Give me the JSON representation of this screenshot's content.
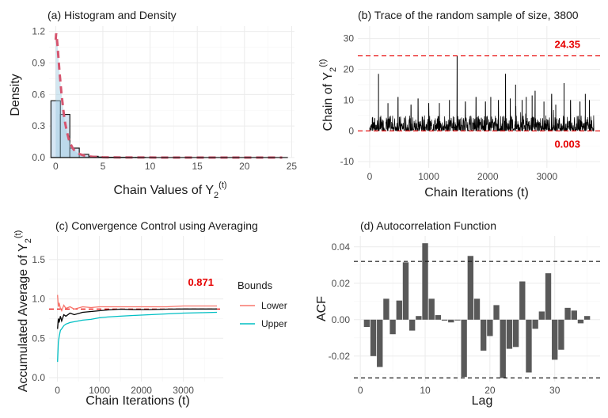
{
  "chart_data": [
    {
      "id": "a",
      "type": "histogram",
      "title": "(a) Histogram and Density",
      "xlabel": "Chain Values of Y",
      "xlabel_sub": "2",
      "xlabel_sup": "(t)",
      "ylabel": "Density",
      "xlim": [
        -0.7,
        25.3
      ],
      "ylim": [
        0,
        1.25
      ],
      "xticks": [
        0,
        5,
        10,
        15,
        20,
        25
      ],
      "yticks": [
        0.0,
        0.3,
        0.6,
        0.9,
        1.2
      ],
      "xtick_labels": [
        "0",
        "5",
        "10",
        "15",
        "20",
        "25"
      ],
      "ytick_labels": [
        "0.0",
        "0.3",
        "0.6",
        "0.9",
        "1.2"
      ],
      "bin_width": 1,
      "bins": [
        {
          "x0": -0.5,
          "x1": 0.5,
          "density": 0.54
        },
        {
          "x0": 0.5,
          "x1": 1.5,
          "density": 0.41
        },
        {
          "x0": 1.5,
          "x1": 2.5,
          "density": 0.09
        },
        {
          "x0": 2.5,
          "x1": 3.5,
          "density": 0.03
        },
        {
          "x0": 3.5,
          "x1": 4.5,
          "density": 0.012
        },
        {
          "x0": 4.5,
          "x1": 5.5,
          "density": 0.005
        },
        {
          "x0": 5.5,
          "x1": 6.5,
          "density": 0.003
        },
        {
          "x0": 6.5,
          "x1": 7.5,
          "density": 0.002
        },
        {
          "x0": 7.5,
          "x1": 8.5,
          "density": 0.001
        },
        {
          "x0": 8.5,
          "x1": 9.5,
          "density": 0.001
        }
      ],
      "density_curve": {
        "x": [
          0,
          0.05,
          0.1,
          0.2,
          0.3,
          0.4,
          0.5,
          0.6,
          0.7,
          0.8,
          0.9,
          1.0,
          1.2,
          1.4,
          1.6,
          1.8,
          2.0,
          2.5,
          3.0,
          3.5,
          4,
          5,
          6,
          8,
          10,
          12,
          15,
          20,
          24
        ],
        "y": [
          1.12,
          1.18,
          1.16,
          1.06,
          0.94,
          0.82,
          0.72,
          0.62,
          0.54,
          0.46,
          0.39,
          0.33,
          0.24,
          0.17,
          0.125,
          0.09,
          0.065,
          0.035,
          0.019,
          0.011,
          0.007,
          0.003,
          0.0015,
          0.0008,
          0.0005,
          0.0003,
          0.0002,
          0.0001,
          0.0001
        ]
      },
      "bar_fill": "#d6e6f4",
      "bar_stroke": "#1a1a1a",
      "area_fill": "#9ecae1",
      "density_color": "#d6556f"
    },
    {
      "id": "b",
      "type": "line",
      "title": "(b) Trace of the random sample of size, 3800",
      "xlabel": "Chain Iterations (t)",
      "ylabel": "Chain of Y",
      "ylabel_sub": "2",
      "ylabel_sup": "(t)",
      "xlim": [
        -200,
        3900
      ],
      "ylim": [
        -12,
        34
      ],
      "xticks": [
        0,
        1000,
        2000,
        3000
      ],
      "yticks": [
        -10,
        0,
        10,
        20,
        30
      ],
      "xtick_labels": [
        "0",
        "1000",
        "2000",
        "3000"
      ],
      "ytick_labels": [
        "-10",
        "0",
        "10",
        "20",
        "30"
      ],
      "n": 3800,
      "spikes": [
        [
          150,
          18.5
        ],
        [
          310,
          9
        ],
        [
          480,
          11
        ],
        [
          700,
          8.5
        ],
        [
          820,
          10.5
        ],
        [
          1000,
          9
        ],
        [
          1180,
          9
        ],
        [
          1350,
          10
        ],
        [
          1480,
          24.35
        ],
        [
          1620,
          9.5
        ],
        [
          1800,
          11
        ],
        [
          1960,
          9.5
        ],
        [
          2050,
          11
        ],
        [
          2180,
          10
        ],
        [
          2300,
          18.5
        ],
        [
          2380,
          10.5
        ],
        [
          2470,
          15
        ],
        [
          2580,
          10
        ],
        [
          2650,
          11
        ],
        [
          2750,
          11.5
        ],
        [
          2800,
          13
        ],
        [
          2950,
          9.5
        ],
        [
          3080,
          12
        ],
        [
          3150,
          8.5
        ],
        [
          3290,
          15.5
        ],
        [
          3400,
          10
        ],
        [
          3560,
          9.5
        ],
        [
          3650,
          12
        ],
        [
          3720,
          10
        ]
      ],
      "hlines": [
        {
          "y": 24.35,
          "label": "24.35"
        },
        {
          "y": 0.003,
          "label": "0.003"
        }
      ],
      "line_color": "#000000",
      "ref_color": "#e60000"
    },
    {
      "id": "c",
      "type": "line",
      "title": "(c) Convergence Control using Averaging",
      "xlabel": "Chain Iterations (t)",
      "ylabel": "Accumulated Average of Y",
      "ylabel_sub": "2",
      "ylabel_sup": "(t)",
      "xlim": [
        -200,
        3950
      ],
      "ylim": [
        -0.05,
        1.8
      ],
      "xticks": [
        0,
        1000,
        2000,
        3000
      ],
      "yticks": [
        0.0,
        0.5,
        1.0,
        1.5
      ],
      "xtick_labels": [
        "0",
        "1000",
        "2000",
        "3000"
      ],
      "ytick_labels": [
        "0.0",
        "0.5",
        "1.0",
        "1.5"
      ],
      "hline": {
        "y": 0.871,
        "label": "0.871"
      },
      "legend": {
        "title": "Bounds",
        "position": "right",
        "items": [
          {
            "name": "Lower",
            "color": "#f8766d"
          },
          {
            "name": "Upper",
            "color": "#00bfc4"
          }
        ]
      },
      "series": [
        {
          "role": "mean",
          "color": "#000000",
          "x": [
            1,
            20,
            40,
            70,
            100,
            150,
            200,
            300,
            400,
            600,
            800,
            1000,
            1200,
            1500,
            1800,
            2200,
            2600,
            3000,
            3400,
            3800
          ],
          "y": [
            0.62,
            0.75,
            0.7,
            0.78,
            0.72,
            0.8,
            0.78,
            0.82,
            0.8,
            0.83,
            0.84,
            0.85,
            0.86,
            0.87,
            0.865,
            0.865,
            0.87,
            0.872,
            0.872,
            0.872
          ]
        },
        {
          "name": "Lower",
          "color": "#f8766d",
          "x": [
            1,
            20,
            40,
            70,
            100,
            150,
            200,
            300,
            400,
            600,
            800,
            1000,
            1200,
            1500,
            1800,
            2200,
            2600,
            3000,
            3400,
            3800
          ],
          "y": [
            1.05,
            0.9,
            0.95,
            0.88,
            0.85,
            0.92,
            0.88,
            0.9,
            0.87,
            0.9,
            0.89,
            0.9,
            0.9,
            0.9,
            0.9,
            0.9,
            0.9,
            0.91,
            0.91,
            0.91
          ]
        },
        {
          "name": "Upper",
          "color": "#00bfc4",
          "x": [
            1,
            20,
            40,
            70,
            100,
            150,
            200,
            300,
            400,
            600,
            800,
            1000,
            1200,
            1500,
            1800,
            2200,
            2600,
            3000,
            3400,
            3800
          ],
          "y": [
            0.2,
            0.45,
            0.52,
            0.6,
            0.62,
            0.66,
            0.68,
            0.7,
            0.71,
            0.73,
            0.74,
            0.76,
            0.77,
            0.78,
            0.79,
            0.8,
            0.81,
            0.82,
            0.825,
            0.83
          ]
        }
      ]
    },
    {
      "id": "d",
      "type": "bar",
      "title": "(d) Autocorrelation Function",
      "xlabel": "Lag",
      "ylabel": "ACF",
      "xlim": [
        -1,
        37
      ],
      "ylim": [
        -0.034,
        0.046
      ],
      "xticks": [
        0,
        10,
        20,
        30
      ],
      "yticks": [
        -0.02,
        0.0,
        0.02,
        0.04
      ],
      "xtick_labels": [
        "0",
        "10",
        "20",
        "30"
      ],
      "ytick_labels": [
        "-0.02",
        "0.00",
        "0.02",
        "0.04"
      ],
      "conf_limits": [
        0.032,
        -0.032
      ],
      "lags": [
        1,
        2,
        3,
        4,
        5,
        6,
        7,
        8,
        9,
        10,
        11,
        12,
        13,
        14,
        15,
        16,
        17,
        18,
        19,
        20,
        21,
        22,
        23,
        24,
        25,
        26,
        27,
        28,
        29,
        30,
        31,
        32,
        33,
        34,
        35
      ],
      "values": [
        -0.004,
        -0.02,
        -0.026,
        0.0115,
        -0.008,
        0.0105,
        0.0315,
        -0.006,
        0.002,
        0.042,
        0.0115,
        0.0025,
        -0.0005,
        -0.0015,
        0.0,
        -0.0315,
        0.035,
        0.0115,
        -0.017,
        -0.009,
        0.008,
        -0.032,
        -0.016,
        -0.015,
        0.021,
        -0.029,
        -0.005,
        0.0045,
        0.0255,
        -0.022,
        -0.0165,
        0.0065,
        0.005,
        -0.002,
        0.002
      ],
      "bar_color": "#595959"
    }
  ]
}
